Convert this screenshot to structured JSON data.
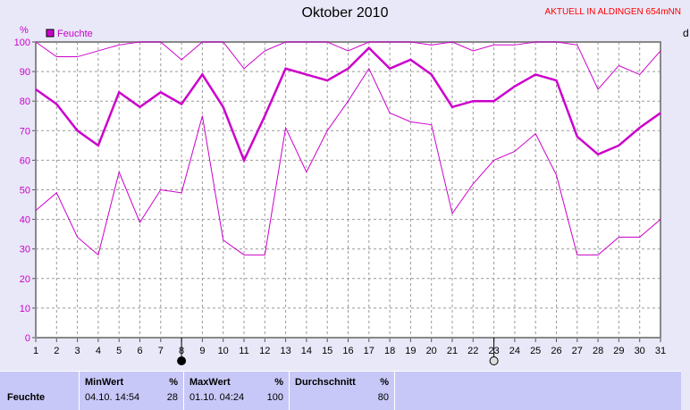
{
  "header": {
    "title": "Oktober 2010",
    "subtitle": "AKTUELL IN ALDINGEN 654mNN",
    "right_label": "d"
  },
  "chart_data": {
    "type": "line",
    "ylabel": "%",
    "ylim": [
      0,
      100
    ],
    "grid": true,
    "legend_position": "top-left",
    "legend": [
      {
        "name": "Feuchte",
        "color": "#cc00cc"
      }
    ],
    "x": [
      1,
      2,
      3,
      4,
      5,
      6,
      7,
      8,
      9,
      10,
      11,
      12,
      13,
      14,
      15,
      16,
      17,
      18,
      19,
      20,
      21,
      22,
      23,
      24,
      25,
      26,
      27,
      28,
      29,
      30,
      31
    ],
    "yticks": [
      0,
      10,
      20,
      30,
      40,
      50,
      60,
      70,
      80,
      90,
      100
    ],
    "series": [
      {
        "role": "max",
        "values": [
          100,
          95,
          95,
          97,
          99,
          100,
          100,
          94,
          100,
          100,
          91,
          97,
          100,
          100,
          100,
          97,
          100,
          100,
          100,
          99,
          100,
          97,
          99,
          99,
          100,
          100,
          99,
          84,
          92,
          89,
          97
        ]
      },
      {
        "role": "average",
        "values": [
          84,
          79,
          70,
          65,
          83,
          78,
          83,
          79,
          89,
          78,
          60,
          75,
          91,
          89,
          87,
          91,
          98,
          91,
          94,
          89,
          78,
          80,
          80,
          85,
          89,
          87,
          68,
          62,
          65,
          71,
          76
        ]
      },
      {
        "role": "min",
        "values": [
          43,
          49,
          34,
          28,
          56,
          39,
          50,
          49,
          75,
          33,
          28,
          28,
          71,
          56,
          70,
          80,
          91,
          76,
          73,
          72,
          42,
          52,
          60,
          63,
          69,
          55,
          28,
          28,
          34,
          34,
          40
        ]
      }
    ],
    "moon_phases": [
      {
        "day": 8,
        "phase": "new-moon"
      },
      {
        "day": 23,
        "phase": "full-moon"
      }
    ]
  },
  "table": {
    "row_label": "Feuchte",
    "columns": [
      {
        "header": "MinWert",
        "unit": "%",
        "time": "04.10.  14:54",
        "value": "28"
      },
      {
        "header": "MaxWert",
        "unit": "%",
        "time": "01.10.  04:24",
        "value": "100"
      },
      {
        "header": "Durchschnitt",
        "unit": "%",
        "time": "",
        "value": "80"
      }
    ]
  }
}
